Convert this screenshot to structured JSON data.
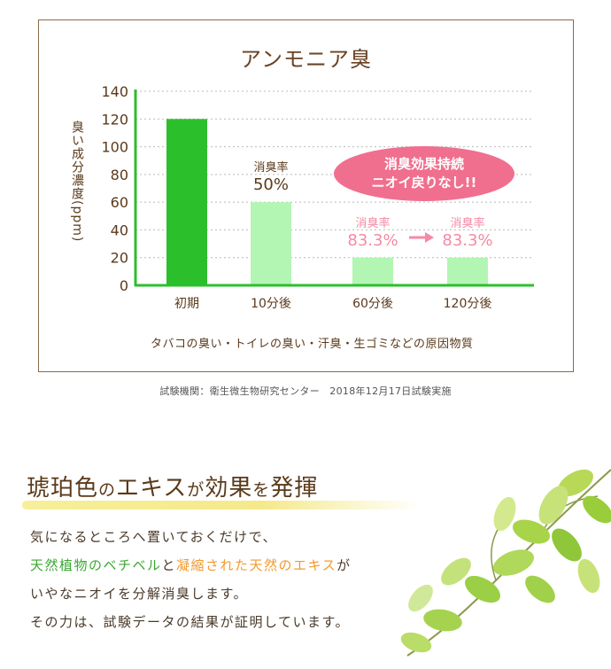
{
  "chart_data": {
    "type": "bar",
    "title": "アンモニア臭",
    "ylabel": "臭い成分濃度(ppm)",
    "xlabel": "",
    "ylim": [
      0,
      140
    ],
    "yticks": [
      "0",
      "20",
      "40",
      "60",
      "80",
      "100",
      "120",
      "140"
    ],
    "categories": [
      "初期",
      "10分後",
      "60分後",
      "120分後"
    ],
    "values": [
      120,
      60,
      20,
      20
    ],
    "colors": [
      "#2cbf2c",
      "#b3f5b3",
      "#b3f5b3",
      "#b3f5b3"
    ],
    "grid": true,
    "annotations": [
      {
        "label": "消臭率",
        "value": "50%",
        "color": "#5a3a1a"
      },
      {
        "label": "消臭率",
        "value": "83.3%",
        "color": "#f48aa4"
      },
      {
        "label": "消臭率",
        "value": "83.3%",
        "color": "#f48aa4"
      }
    ],
    "badge": [
      "消臭効果持続",
      "ニオイ戻りなし!!"
    ],
    "caption": "タバコの臭い・トイレの臭い・汗臭・生ゴミなどの原因物質"
  },
  "test_info": "試験機関：衛生微生物研究センター　2018年12月17日試験実施",
  "heading": {
    "part1": "琥珀色",
    "part2": "の",
    "part3": "エキス",
    "part4": "が",
    "part5": "効果",
    "part6": "を",
    "part7": "発揮"
  },
  "body": {
    "line1": "気になるところへ置いておくだけで、",
    "line2a": "天然植物のベチベル",
    "line2b": "と",
    "line2c": "凝縮された天然のエキス",
    "line2d": "が",
    "line3": "いやなニオイを分解消臭します。",
    "line4": "その力は、試験データの結果が証明しています。"
  },
  "colors": {
    "accent_pink": "#f06f8e",
    "axis_green": "#2cbf2c",
    "text_brown": "#5a3a1a",
    "green_text": "#3aa832",
    "orange_text": "#f29a2e"
  }
}
